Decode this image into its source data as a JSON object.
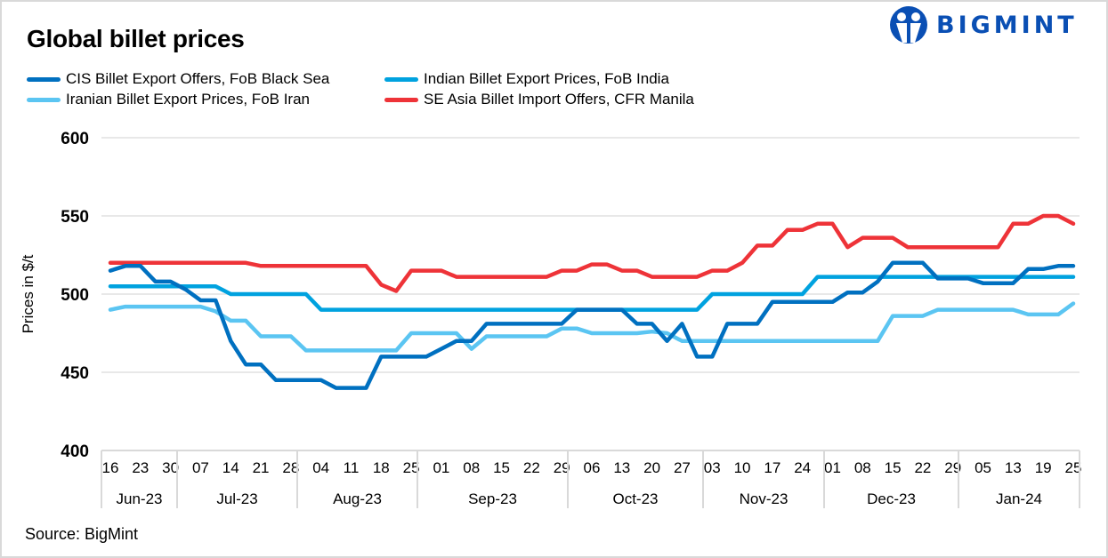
{
  "header": {
    "title": "Global billet prices",
    "logo_text": "BIGMINT"
  },
  "footer": {
    "source": "Source: BigMint"
  },
  "chart_data": {
    "type": "line",
    "title": "Global billet prices",
    "ylabel": "Prices in $/t",
    "xlabel": "",
    "ylim": [
      400,
      600
    ],
    "yticks": [
      400,
      450,
      500,
      550,
      600
    ],
    "grid": true,
    "legend_position": "top",
    "x_tick_labels": [
      "16",
      "23",
      "30",
      "07",
      "14",
      "21",
      "28",
      "04",
      "11",
      "18",
      "25",
      "01",
      "08",
      "15",
      "22",
      "29",
      "06",
      "13",
      "20",
      "27",
      "03",
      "10",
      "17",
      "24",
      "01",
      "08",
      "15",
      "22",
      "29",
      "05",
      "13",
      "19",
      "25"
    ],
    "month_groups": [
      {
        "label": "Jun-23",
        "ticks": 3
      },
      {
        "label": "Jul-23",
        "ticks": 4
      },
      {
        "label": "Aug-23",
        "ticks": 4
      },
      {
        "label": "Sep-23",
        "ticks": 5
      },
      {
        "label": "Oct-23",
        "ticks": 4
      },
      {
        "label": "Nov-23",
        "ticks": 4
      },
      {
        "label": "Dec-23",
        "ticks": 5
      },
      {
        "label": "Jan-24",
        "ticks": 4
      }
    ],
    "series": [
      {
        "name": "CIS Billet Export Offers, FoB Black Sea",
        "color": "#0070c0",
        "values": [
          515,
          518,
          518,
          508,
          508,
          503,
          496,
          496,
          470,
          455,
          455,
          445,
          445,
          445,
          445,
          440,
          440,
          440,
          460,
          460,
          460,
          460,
          465,
          470,
          470,
          481,
          481,
          481,
          481,
          481,
          481,
          490,
          490,
          490,
          490,
          481,
          481,
          470,
          481,
          460,
          460,
          481,
          481,
          481,
          495,
          495,
          495,
          495,
          495,
          501,
          501,
          508,
          520,
          520,
          520,
          510,
          510,
          510,
          507,
          507,
          507,
          516,
          516,
          518,
          518
        ]
      },
      {
        "name": "Indian Billet Export Prices, FoB India",
        "color": "#00a2df",
        "values": [
          505,
          505,
          505,
          505,
          505,
          505,
          505,
          505,
          500,
          500,
          500,
          500,
          500,
          500,
          490,
          490,
          490,
          490,
          490,
          490,
          490,
          490,
          490,
          490,
          490,
          490,
          490,
          490,
          490,
          490,
          490,
          490,
          490,
          490,
          490,
          490,
          490,
          490,
          490,
          490,
          500,
          500,
          500,
          500,
          500,
          500,
          500,
          511,
          511,
          511,
          511,
          511,
          511,
          511,
          511,
          511,
          511,
          511,
          511,
          511,
          511,
          511,
          511,
          511,
          511
        ]
      },
      {
        "name": "Iranian Billet Export Prices, FoB Iran",
        "color": "#5bc5f2",
        "values": [
          490,
          492,
          492,
          492,
          492,
          492,
          492,
          489,
          483,
          483,
          473,
          473,
          473,
          464,
          464,
          464,
          464,
          464,
          464,
          464,
          475,
          475,
          475,
          475,
          465,
          473,
          473,
          473,
          473,
          473,
          478,
          478,
          475,
          475,
          475,
          475,
          476,
          475,
          470,
          470,
          470,
          470,
          470,
          470,
          470,
          470,
          470,
          470,
          470,
          470,
          470,
          470,
          486,
          486,
          486,
          490,
          490,
          490,
          490,
          490,
          490,
          487,
          487,
          487,
          494
        ]
      },
      {
        "name": "SE Asia Billet Import Offers, CFR Manila",
        "color": "#ee3338",
        "values": [
          520,
          520,
          520,
          520,
          520,
          520,
          520,
          520,
          520,
          520,
          518,
          518,
          518,
          518,
          518,
          518,
          518,
          518,
          506,
          502,
          515,
          515,
          515,
          511,
          511,
          511,
          511,
          511,
          511,
          511,
          515,
          515,
          519,
          519,
          515,
          515,
          511,
          511,
          511,
          511,
          515,
          515,
          520,
          531,
          531,
          541,
          541,
          545,
          545,
          530,
          536,
          536,
          536,
          530,
          530,
          530,
          530,
          530,
          530,
          530,
          545,
          545,
          550,
          550,
          545
        ]
      }
    ]
  }
}
